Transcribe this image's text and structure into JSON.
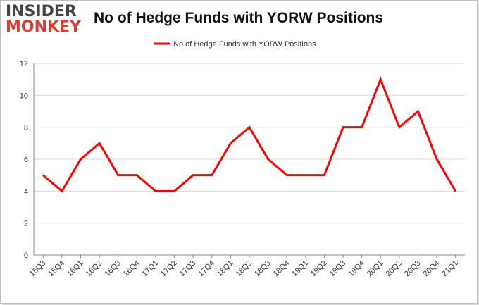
{
  "logo": {
    "line1": "INSIDER",
    "line2": "MONKEY"
  },
  "chart_data": {
    "type": "line",
    "title": "No of Hedge Funds with YORW Positions",
    "xlabel": "",
    "ylabel": "",
    "categories": [
      "15Q3",
      "15Q4",
      "16Q1",
      "16Q2",
      "16Q3",
      "16Q4",
      "17Q1",
      "17Q2",
      "17Q3",
      "17Q4",
      "18Q1",
      "18Q2",
      "18Q3",
      "18Q4",
      "19Q1",
      "19Q2",
      "19Q3",
      "19Q4",
      "20Q1",
      "20Q2",
      "20Q3",
      "20Q4",
      "21Q1"
    ],
    "series": [
      {
        "name": "No of Hedge Funds with YORW  Positions",
        "values": [
          5,
          4,
          6,
          7,
          5,
          5,
          4,
          4,
          5,
          5,
          7,
          8,
          6,
          5,
          5,
          5,
          8,
          8,
          11,
          8,
          9,
          6,
          4
        ]
      }
    ],
    "ylim": [
      0,
      12
    ],
    "yticks": [
      0,
      2,
      4,
      6,
      8,
      10,
      12
    ],
    "grid": true,
    "legend": "top-center",
    "color": "#ff0000"
  }
}
